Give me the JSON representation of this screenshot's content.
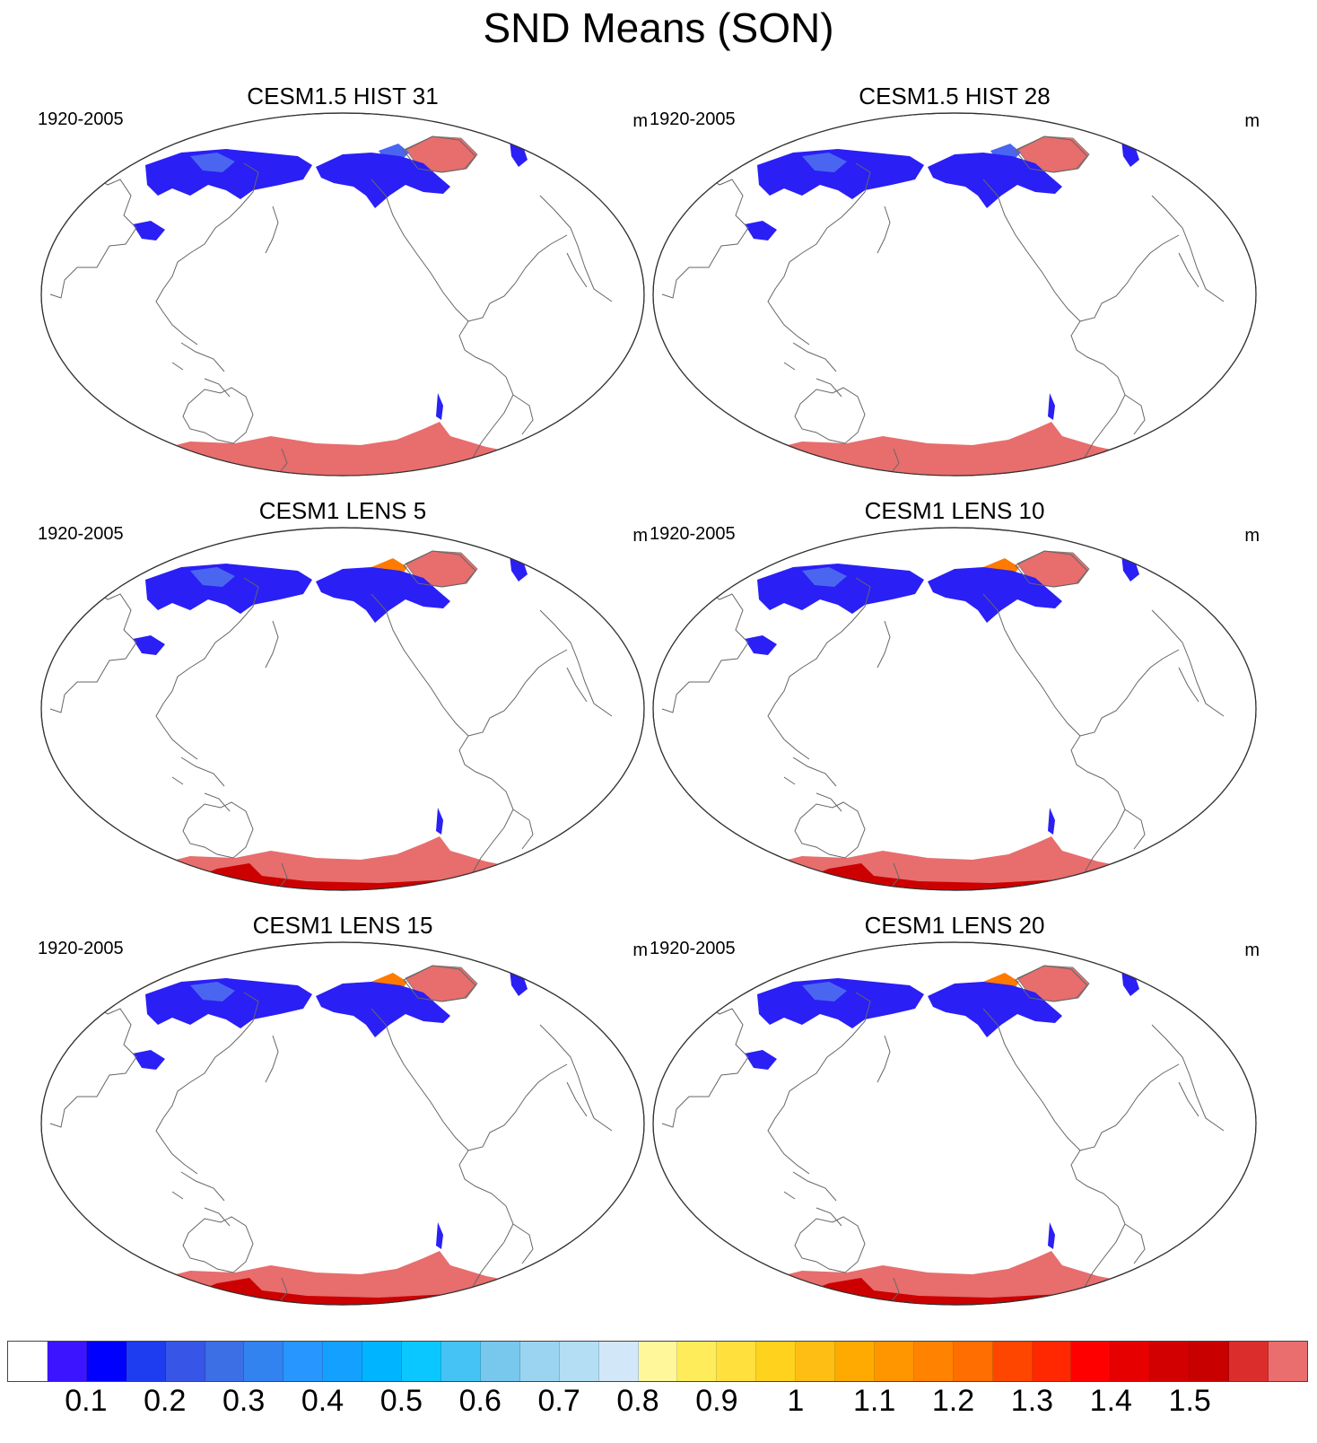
{
  "title": "SND Means (SON)",
  "panels": [
    {
      "title": "CESM1.5 HIST 31",
      "period": "1920-2005",
      "units": "m",
      "variant": "hist"
    },
    {
      "title": "CESM1.5 HIST 28",
      "period": "1920-2005",
      "units": "m",
      "variant": "hist"
    },
    {
      "title": "CESM1 LENS 5",
      "period": "1920-2005",
      "units": "m",
      "variant": "lens"
    },
    {
      "title": "CESM1 LENS 10",
      "period": "1920-2005",
      "units": "m",
      "variant": "lens"
    },
    {
      "title": "CESM1 LENS 15",
      "period": "1920-2005",
      "units": "m",
      "variant": "lens"
    },
    {
      "title": "CESM1 LENS 20",
      "period": "1920-2005",
      "units": "m",
      "variant": "lens"
    }
  ],
  "colorbar": {
    "colors": [
      "#ffffff",
      "#3c14ff",
      "#0000ff",
      "#1e3cf0",
      "#3755e6",
      "#3c6ee6",
      "#3282f0",
      "#2896ff",
      "#14a0ff",
      "#00b4ff",
      "#0ac8ff",
      "#46c3f5",
      "#78c8ee",
      "#9bd4f0",
      "#b4def4",
      "#d2e8f8",
      "#fff799",
      "#ffec5a",
      "#ffe03c",
      "#ffd21e",
      "#ffbe14",
      "#ffaa00",
      "#ff9600",
      "#ff8200",
      "#ff6e00",
      "#ff4600",
      "#ff2800",
      "#ff0000",
      "#e60000",
      "#d20000",
      "#c80000",
      "#dc2d2d",
      "#eb6e6e"
    ],
    "tick_labels": [
      "0.1",
      "0.2",
      "0.3",
      "0.4",
      "0.5",
      "0.6",
      "0.7",
      "0.8",
      "0.9",
      "1",
      "1.1",
      "1.2",
      "1.3",
      "1.4",
      "1.5"
    ]
  },
  "legend_colors": {
    "low": "#2a1ff5",
    "mid": "#4a66f0",
    "high": "#e86d6d",
    "max": "#cc0000",
    "orange": "#ff7a00"
  }
}
